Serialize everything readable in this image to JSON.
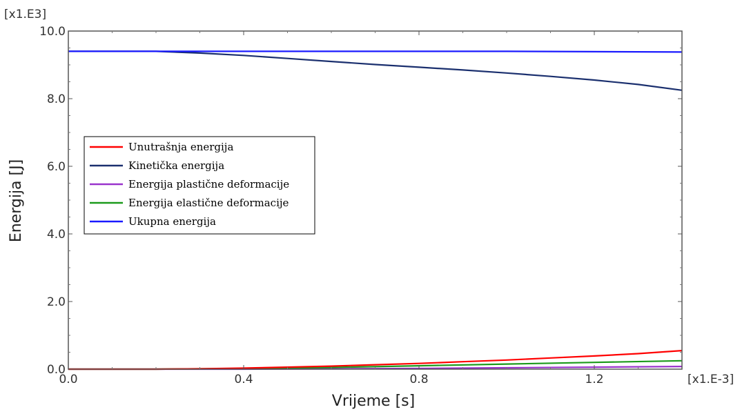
{
  "chart_data": {
    "type": "line",
    "title": "",
    "xlabel": "Vrijeme [s]",
    "ylabel": "Energija [J]",
    "x_scale_label": "[x1.E-3]",
    "y_scale_label": "[x1.E3]",
    "xlim": [
      0.0,
      1.4
    ],
    "ylim": [
      0.0,
      10.0
    ],
    "x_ticks": [
      0.0,
      0.4,
      0.8,
      1.2
    ],
    "x_tick_labels": [
      "0.0",
      "0.4",
      "0.8",
      "1.2"
    ],
    "y_ticks": [
      0.0,
      2.0,
      4.0,
      6.0,
      8.0,
      10.0
    ],
    "y_tick_labels": [
      "0.0",
      "2.0",
      "4.0",
      "6.0",
      "8.0",
      "10.0"
    ],
    "grid": false,
    "legend_position": "middle-left",
    "series": [
      {
        "name": "Unutrašnja energija",
        "color": "#ff0000",
        "x": [
          0.0,
          0.1,
          0.2,
          0.3,
          0.4,
          0.5,
          0.6,
          0.7,
          0.8,
          0.9,
          1.0,
          1.1,
          1.2,
          1.3,
          1.4
        ],
        "y": [
          0.0,
          0.0,
          0.0,
          0.01,
          0.03,
          0.06,
          0.09,
          0.13,
          0.17,
          0.22,
          0.27,
          0.33,
          0.39,
          0.46,
          0.55
        ]
      },
      {
        "name": "Kinetička energija",
        "color": "#1a2f6e",
        "x": [
          0.0,
          0.1,
          0.2,
          0.3,
          0.4,
          0.5,
          0.6,
          0.7,
          0.8,
          0.9,
          1.0,
          1.1,
          1.2,
          1.3,
          1.4
        ],
        "y": [
          9.4,
          9.4,
          9.4,
          9.35,
          9.28,
          9.19,
          9.1,
          9.01,
          8.93,
          8.85,
          8.76,
          8.66,
          8.55,
          8.42,
          8.25
        ]
      },
      {
        "name": "Energija plastične deformacije",
        "color": "#9933cc",
        "x": [
          0.0,
          0.2,
          0.4,
          0.6,
          0.8,
          1.0,
          1.2,
          1.4
        ],
        "y": [
          0.0,
          0.0,
          0.0,
          0.01,
          0.02,
          0.04,
          0.06,
          0.08
        ]
      },
      {
        "name": "Energija elastične deformacije",
        "color": "#1a9a1a",
        "x": [
          0.0,
          0.2,
          0.4,
          0.6,
          0.8,
          1.0,
          1.2,
          1.4
        ],
        "y": [
          0.0,
          0.0,
          0.02,
          0.05,
          0.1,
          0.15,
          0.2,
          0.25
        ]
      },
      {
        "name": "Ukupna energija",
        "color": "#1a1aff",
        "x": [
          0.0,
          0.2,
          0.4,
          0.6,
          0.8,
          1.0,
          1.2,
          1.4
        ],
        "y": [
          9.4,
          9.4,
          9.4,
          9.4,
          9.4,
          9.4,
          9.39,
          9.38
        ]
      }
    ]
  }
}
